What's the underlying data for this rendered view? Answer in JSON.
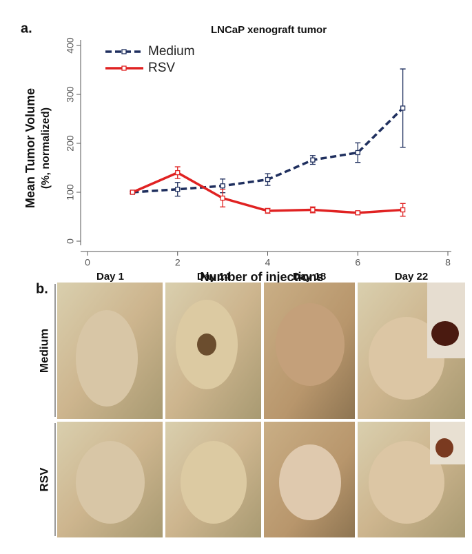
{
  "chart_data": {
    "type": "line",
    "panel_label": "a.",
    "title": "LNCaP xenograft tumor",
    "xlabel": "Number of injections",
    "ylabel": [
      "Mean Tumor Volume",
      "(%, normalized)"
    ],
    "x": [
      1,
      2,
      3,
      4,
      5,
      6,
      7
    ],
    "series": [
      {
        "name": "Medium",
        "color": "#1f2f5e",
        "linestyle": "dashed",
        "values": [
          100,
          106,
          113,
          126,
          166,
          181,
          272
        ],
        "errors": [
          2,
          14,
          14,
          12,
          9,
          20,
          80
        ]
      },
      {
        "name": "RSV",
        "color": "#e02222",
        "linestyle": "solid",
        "values": [
          100,
          140,
          88,
          62,
          64,
          58,
          64
        ],
        "errors": [
          2,
          12,
          18,
          5,
          6,
          4,
          13
        ]
      }
    ],
    "xlim": [
      0,
      8
    ],
    "xticks": [
      0,
      2,
      4,
      6,
      8
    ],
    "ylim": [
      0,
      400
    ],
    "yticks": [
      0,
      100,
      200,
      300,
      400
    ],
    "legend": "upper left"
  },
  "panel_b": {
    "panel_label": "b.",
    "columns": [
      "Day 1",
      "Day 14",
      "Day 18",
      "Day 22"
    ],
    "rows": [
      "Medium",
      "RSV"
    ]
  }
}
